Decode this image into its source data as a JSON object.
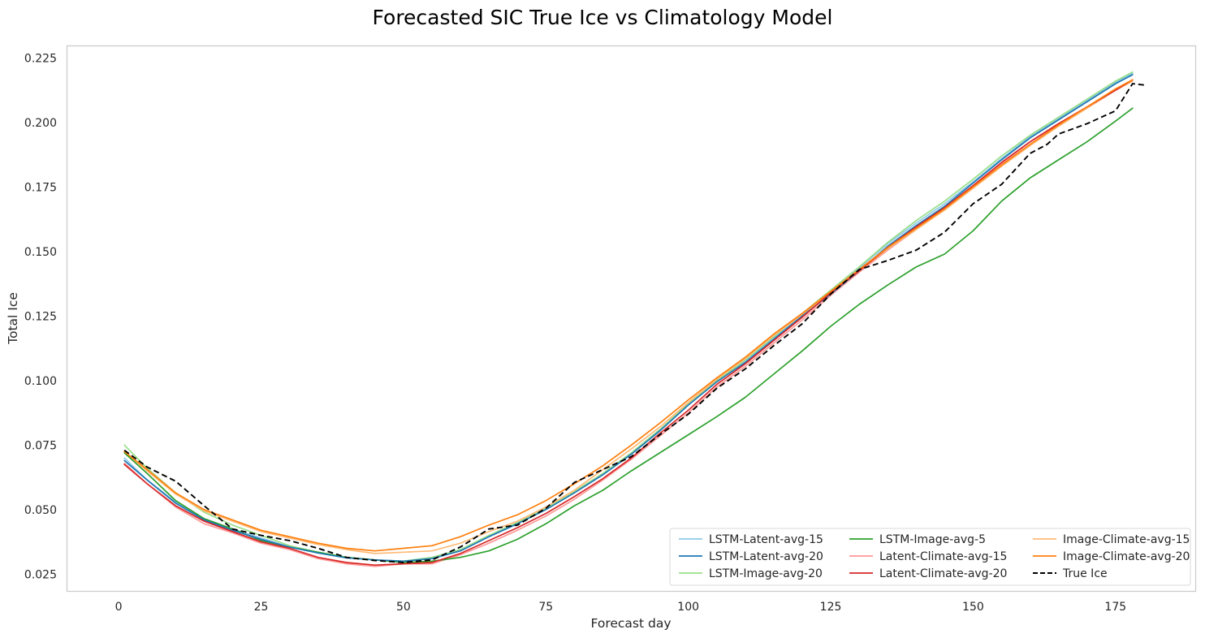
{
  "chart_data": {
    "type": "line",
    "title": "Forecasted SIC True Ice vs Climatology Model",
    "xlabel": "Forecast day",
    "ylabel": "Total Ice",
    "xlim": [
      -9,
      189
    ],
    "ylim": [
      0.0185,
      0.2295
    ],
    "xticks": [
      "0",
      "25",
      "50",
      "75",
      "100",
      "125",
      "150",
      "175"
    ],
    "xtick_values": [
      0,
      25,
      50,
      75,
      100,
      125,
      150,
      175
    ],
    "yticks": [
      "0.025",
      "0.050",
      "0.075",
      "0.100",
      "0.125",
      "0.150",
      "0.175",
      "0.200",
      "0.225"
    ],
    "ytick_values": [
      0.025,
      0.05,
      0.075,
      0.1,
      0.125,
      0.15,
      0.175,
      0.2,
      0.225
    ],
    "grid": false,
    "legend_position": "lower-right",
    "legend_columns": 3,
    "series": [
      {
        "name": "LSTM-Latent-avg-15",
        "color": "#8ecae6",
        "dash": false,
        "width": 1.7,
        "x": [
          1,
          5,
          10,
          15,
          20,
          25,
          30,
          35,
          40,
          45,
          50,
          55,
          60,
          65,
          70,
          75,
          80,
          85,
          90,
          95,
          100,
          105,
          110,
          115,
          120,
          125,
          130,
          135,
          140,
          145,
          150,
          155,
          160,
          165,
          170,
          175,
          178
        ],
        "y": [
          0.07,
          0.0615,
          0.053,
          0.0465,
          0.0425,
          0.039,
          0.0355,
          0.0333,
          0.0315,
          0.0305,
          0.03,
          0.0315,
          0.0345,
          0.0395,
          0.0445,
          0.05,
          0.0565,
          0.0635,
          0.0715,
          0.0805,
          0.0905,
          0.0995,
          0.1075,
          0.1165,
          0.1255,
          0.134,
          0.1435,
          0.153,
          0.161,
          0.1685,
          0.177,
          0.186,
          0.1945,
          0.2015,
          0.2085,
          0.2155,
          0.219
        ]
      },
      {
        "name": "LSTM-Latent-avg-20",
        "color": "#1f77b4",
        "dash": false,
        "width": 1.7,
        "x": [
          1,
          5,
          10,
          15,
          20,
          25,
          30,
          35,
          40,
          45,
          50,
          55,
          60,
          65,
          70,
          75,
          80,
          85,
          90,
          95,
          100,
          105,
          110,
          115,
          120,
          125,
          130,
          135,
          140,
          145,
          150,
          155,
          160,
          165,
          170,
          175,
          178
        ],
        "y": [
          0.069,
          0.0615,
          0.0525,
          0.046,
          0.042,
          0.0385,
          0.0355,
          0.0332,
          0.0313,
          0.0305,
          0.03,
          0.031,
          0.034,
          0.0395,
          0.0445,
          0.05,
          0.0565,
          0.0635,
          0.0715,
          0.0805,
          0.0905,
          0.0995,
          0.107,
          0.116,
          0.125,
          0.1335,
          0.1425,
          0.152,
          0.16,
          0.1675,
          0.1765,
          0.1855,
          0.194,
          0.201,
          0.208,
          0.215,
          0.2185
        ]
      },
      {
        "name": "LSTM-Image-avg-20",
        "color": "#98df8a",
        "dash": false,
        "width": 1.7,
        "x": [
          1,
          5,
          10,
          15,
          20,
          25,
          30,
          35,
          40,
          45,
          50,
          55,
          60,
          65,
          70,
          75,
          80,
          85,
          90,
          95,
          100,
          105,
          110,
          115,
          120,
          125,
          130,
          135,
          140,
          145,
          150,
          155,
          160,
          165,
          170,
          175,
          178
        ],
        "y": [
          0.075,
          0.066,
          0.0565,
          0.049,
          0.044,
          0.04,
          0.036,
          0.0335,
          0.0315,
          0.0305,
          0.03,
          0.0315,
          0.0345,
          0.04,
          0.045,
          0.0505,
          0.057,
          0.064,
          0.072,
          0.081,
          0.091,
          0.1,
          0.108,
          0.117,
          0.126,
          0.135,
          0.144,
          0.1535,
          0.162,
          0.1695,
          0.178,
          0.187,
          0.195,
          0.202,
          0.209,
          0.216,
          0.2195
        ]
      },
      {
        "name": "LSTM-Image-avg-5",
        "color": "#2ca02c",
        "dash": false,
        "width": 1.7,
        "x": [
          1,
          5,
          10,
          15,
          20,
          25,
          30,
          35,
          40,
          45,
          50,
          55,
          60,
          65,
          70,
          75,
          80,
          85,
          90,
          95,
          100,
          105,
          110,
          115,
          120,
          125,
          130,
          135,
          140,
          145,
          150,
          155,
          160,
          165,
          170,
          175,
          178
        ],
        "y": [
          0.072,
          0.064,
          0.0535,
          0.0465,
          0.0425,
          0.038,
          0.0355,
          0.0335,
          0.0315,
          0.0305,
          0.0295,
          0.03,
          0.0315,
          0.034,
          0.0385,
          0.0445,
          0.0515,
          0.0575,
          0.065,
          0.072,
          0.079,
          0.086,
          0.0935,
          0.1025,
          0.1115,
          0.121,
          0.1295,
          0.137,
          0.144,
          0.149,
          0.158,
          0.1695,
          0.1785,
          0.1855,
          0.1925,
          0.2005,
          0.2055
        ]
      },
      {
        "name": "Latent-Climate-avg-15",
        "color": "#ff9896",
        "dash": false,
        "width": 1.7,
        "x": [
          1,
          5,
          10,
          15,
          20,
          25,
          30,
          35,
          40,
          45,
          50,
          55,
          60,
          65,
          70,
          75,
          80,
          85,
          90,
          95,
          100,
          105,
          110,
          115,
          120,
          125,
          130,
          135,
          140,
          145,
          150,
          155,
          160,
          165,
          170,
          175,
          178
        ],
        "y": [
          0.068,
          0.06,
          0.051,
          0.0445,
          0.041,
          0.037,
          0.0345,
          0.031,
          0.029,
          0.028,
          0.029,
          0.029,
          0.0325,
          0.037,
          0.042,
          0.0475,
          0.054,
          0.0615,
          0.0695,
          0.0785,
          0.0875,
          0.0975,
          0.1055,
          0.1145,
          0.1235,
          0.133,
          0.142,
          0.1505,
          0.1585,
          0.1665,
          0.175,
          0.184,
          0.1925,
          0.1995,
          0.2055,
          0.2125,
          0.216
        ]
      },
      {
        "name": "Latent-Climate-avg-20",
        "color": "#d62728",
        "dash": false,
        "width": 1.7,
        "x": [
          1,
          5,
          10,
          15,
          20,
          25,
          30,
          35,
          40,
          45,
          50,
          55,
          60,
          65,
          70,
          75,
          80,
          85,
          90,
          95,
          100,
          105,
          110,
          115,
          120,
          125,
          130,
          135,
          140,
          145,
          150,
          155,
          160,
          165,
          170,
          175,
          178
        ],
        "y": [
          0.0675,
          0.06,
          0.0515,
          0.0455,
          0.0415,
          0.0375,
          0.035,
          0.0315,
          0.0295,
          0.0285,
          0.029,
          0.0295,
          0.033,
          0.038,
          0.043,
          0.0485,
          0.055,
          0.062,
          0.07,
          0.0795,
          0.0885,
          0.0985,
          0.1065,
          0.1155,
          0.1245,
          0.134,
          0.1425,
          0.1515,
          0.1595,
          0.167,
          0.1755,
          0.1845,
          0.1925,
          0.1995,
          0.206,
          0.2125,
          0.2165
        ]
      },
      {
        "name": "Image-Climate-avg-15",
        "color": "#ffbb78",
        "dash": false,
        "width": 1.7,
        "x": [
          1,
          5,
          10,
          15,
          20,
          25,
          30,
          35,
          40,
          45,
          50,
          55,
          60,
          65,
          70,
          75,
          80,
          85,
          90,
          95,
          100,
          105,
          110,
          115,
          120,
          125,
          130,
          135,
          140,
          145,
          150,
          155,
          160,
          165,
          170,
          175,
          178
        ],
        "y": [
          0.0725,
          0.065,
          0.056,
          0.0495,
          0.0455,
          0.0415,
          0.039,
          0.0365,
          0.0345,
          0.033,
          0.0335,
          0.034,
          0.037,
          0.0415,
          0.0455,
          0.051,
          0.0575,
          0.0655,
          0.0735,
          0.082,
          0.0915,
          0.1005,
          0.1085,
          0.1175,
          0.1255,
          0.134,
          0.1425,
          0.151,
          0.1585,
          0.166,
          0.1745,
          0.183,
          0.191,
          0.1985,
          0.2055,
          0.2125,
          0.216
        ]
      },
      {
        "name": "Image-Climate-avg-20",
        "color": "#ff7f0e",
        "dash": false,
        "width": 1.7,
        "x": [
          1,
          5,
          10,
          15,
          20,
          25,
          30,
          35,
          40,
          45,
          50,
          55,
          60,
          65,
          70,
          75,
          80,
          85,
          90,
          95,
          100,
          105,
          110,
          115,
          120,
          125,
          130,
          135,
          140,
          145,
          150,
          155,
          160,
          165,
          170,
          175,
          178
        ],
        "y": [
          0.0725,
          0.0655,
          0.0565,
          0.05,
          0.046,
          0.042,
          0.0395,
          0.037,
          0.035,
          0.034,
          0.035,
          0.036,
          0.0395,
          0.044,
          0.048,
          0.0535,
          0.06,
          0.067,
          0.075,
          0.0835,
          0.0925,
          0.101,
          0.109,
          0.118,
          0.126,
          0.1345,
          0.143,
          0.1515,
          0.159,
          0.1665,
          0.175,
          0.1835,
          0.1915,
          0.199,
          0.206,
          0.213,
          0.2165
        ]
      },
      {
        "name": "True Ice",
        "color": "#000000",
        "dash": true,
        "width": 1.9,
        "x": [
          1,
          5,
          10,
          15,
          20,
          25,
          30,
          35,
          40,
          45,
          50,
          55,
          60,
          65,
          70,
          75,
          80,
          85,
          90,
          95,
          100,
          105,
          110,
          115,
          120,
          125,
          130,
          135,
          140,
          145,
          150,
          155,
          160,
          163,
          165,
          170,
          175,
          178,
          180
        ],
        "y": [
          0.073,
          0.0665,
          0.061,
          0.0515,
          0.0425,
          0.04,
          0.038,
          0.035,
          0.0315,
          0.0303,
          0.0295,
          0.0305,
          0.0355,
          0.0425,
          0.044,
          0.0505,
          0.0605,
          0.0655,
          0.0705,
          0.079,
          0.087,
          0.097,
          0.1045,
          0.1135,
          0.122,
          0.1335,
          0.143,
          0.1465,
          0.1505,
          0.1575,
          0.1685,
          0.176,
          0.188,
          0.1915,
          0.1955,
          0.1995,
          0.2045,
          0.215,
          0.2145
        ]
      }
    ]
  }
}
